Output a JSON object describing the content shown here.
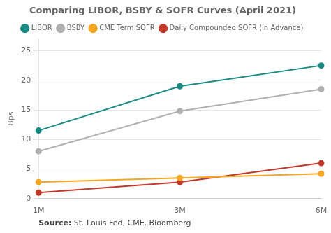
{
  "chart_data": {
    "type": "line",
    "title": "Comparing LIBOR, BSBY & SOFR Curves (April 2021)",
    "ylabel": "Bps",
    "categories": [
      "1M",
      "3M",
      "6M"
    ],
    "series": [
      {
        "name": "LIBOR",
        "values": [
          11.5,
          19.0,
          22.5
        ],
        "color": "#1a8a85",
        "marker": "circle"
      },
      {
        "name": "BSBY",
        "values": [
          8.0,
          14.8,
          18.5
        ],
        "color": "#b0b0b0",
        "marker": "circle"
      },
      {
        "name": "CME Term SOFR",
        "values": [
          2.8,
          3.5,
          4.2
        ],
        "color": "#f5a623",
        "marker": "circle"
      },
      {
        "name": "Daily Compounded SOFR (in Advance)",
        "values": [
          1.0,
          2.8,
          6.0
        ],
        "color": "#c0392b",
        "marker": "circle"
      }
    ],
    "ylim": [
      0,
      27
    ],
    "yticks": [
      0,
      5,
      10,
      15,
      20,
      25
    ],
    "grid": true,
    "legend": "top",
    "annotations": [
      "Source:",
      " St. Louis Fed, CME, Bloomberg"
    ]
  }
}
